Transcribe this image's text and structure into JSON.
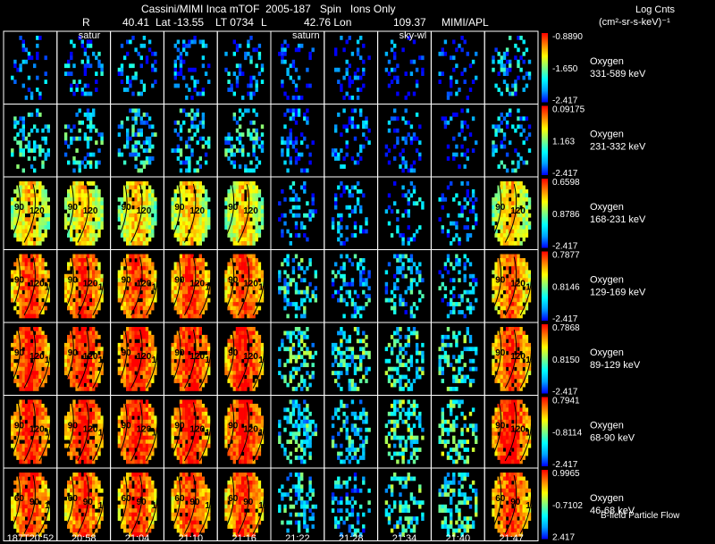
{
  "header": {
    "title": "Cassini/MIMI Inca mTOF  2005-187   Spin   Ions Only",
    "line2_r_label": "R",
    "line2_r_value": "40.41",
    "line2_lat": "Lat -13.55",
    "line2_lt": "LT 0734",
    "line2_l": "L",
    "line2_lon_value": "42.76 Lon",
    "line2_alt": "109.37",
    "line2_instrument": "MIMI/APL",
    "units_title": "Log Cnts",
    "units": "(cm²-sr-s-keV)⁻¹"
  },
  "footer": {
    "flow_label": "B-field Particle Flow"
  },
  "chart_data": {
    "type": "heatmap",
    "title": "Cassini/MIMI Inca mTOF  2005-187   Spin   Ions Only",
    "colorscale": [
      "#0000ff",
      "#00a0ff",
      "#00ffff",
      "#80ff80",
      "#ffff00",
      "#ff8000",
      "#ff0000"
    ],
    "times": [
      "187T20:52",
      "20:58",
      "21:04",
      "21:10",
      "21:16",
      "21:22",
      "21:28",
      "21:34",
      "21:40",
      "21:47"
    ],
    "panel_labels": [
      {
        "row": 0,
        "col": 1,
        "text": "satur"
      },
      {
        "row": 0,
        "col": 5,
        "text": "saturn"
      },
      {
        "row": 0,
        "col": 7,
        "text": "sky-wl"
      }
    ],
    "rows": [
      {
        "species": "Oxygen",
        "energy": "331-589 keV",
        "cmax": "-0.8890",
        "cmid": "-1.650",
        "cmin": "-2.417",
        "intensity": [
          0.15,
          0.2,
          0.2,
          0.15,
          0.2,
          0.05,
          0.05,
          0.05,
          0.05,
          0.25
        ],
        "angles": []
      },
      {
        "species": "Oxygen",
        "energy": "231-332 keV",
        "cmax": "0.09175",
        "cmid": "1.163",
        "cmin": "-2.417",
        "intensity": [
          0.35,
          0.35,
          0.35,
          0.35,
          0.35,
          0.15,
          0.1,
          0.1,
          0.05,
          0.25
        ],
        "angles": []
      },
      {
        "species": "Oxygen",
        "energy": "168-231 keV",
        "cmax": "0.6598",
        "cmid": "0.8786",
        "cmin": "-2.417",
        "intensity": [
          0.6,
          0.6,
          0.6,
          0.6,
          0.6,
          0.2,
          0.2,
          0.2,
          0.2,
          0.6
        ],
        "angles": [
          "90",
          "120"
        ]
      },
      {
        "species": "Oxygen",
        "energy": "129-169 keV",
        "cmax": "0.7877",
        "cmid": "0.8146",
        "cmin": "-2.417",
        "intensity": [
          0.8,
          0.8,
          0.8,
          0.8,
          0.8,
          0.4,
          0.3,
          0.3,
          0.3,
          0.75
        ],
        "angles": [
          "90",
          "120",
          "150"
        ]
      },
      {
        "species": "Oxygen",
        "energy": "89-129 keV",
        "cmax": "0.7868",
        "cmid": "0.8150",
        "cmin": "-2.417",
        "intensity": [
          0.85,
          0.85,
          0.85,
          0.85,
          0.85,
          0.45,
          0.45,
          0.45,
          0.45,
          0.8
        ],
        "angles": [
          "90",
          "120",
          "150"
        ]
      },
      {
        "species": "Oxygen",
        "energy": "68-90 keV",
        "cmax": "0.7941",
        "cmid": "-0.8114",
        "cmin": "-2.417",
        "intensity": [
          0.85,
          0.85,
          0.85,
          0.85,
          0.85,
          0.4,
          0.4,
          0.5,
          0.5,
          0.85
        ],
        "angles": [
          "90",
          "120",
          "150"
        ]
      },
      {
        "species": "Oxygen",
        "energy": "46-68 keV",
        "cmax": "0.9965",
        "cmid": "-0.7102",
        "cmin": "2.417",
        "intensity": [
          0.8,
          0.8,
          0.8,
          0.8,
          0.8,
          0.35,
          0.3,
          0.45,
          0.45,
          0.8
        ],
        "angles": [
          "60",
          "90",
          "120",
          "150"
        ]
      }
    ]
  }
}
